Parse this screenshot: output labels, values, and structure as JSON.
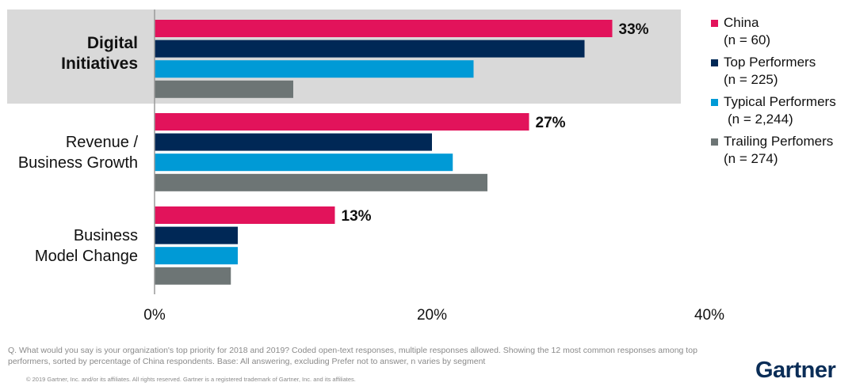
{
  "chart_data": {
    "type": "bar",
    "orientation": "horizontal",
    "categories": [
      "Digital Initiatives",
      "Revenue / Business Growth",
      "Business Model Change"
    ],
    "category_lines": [
      [
        "Digital",
        "Initiatives"
      ],
      [
        "Revenue /",
        "Business Growth"
      ],
      [
        "Business",
        "Model Change"
      ]
    ],
    "highlighted_category": "Digital Initiatives",
    "series": [
      {
        "name": "China",
        "n_label": "(n = 60)",
        "color": "#e2135b",
        "values": [
          33,
          27,
          13
        ]
      },
      {
        "name": "Top Performers",
        "n_label": "(n = 225)",
        "color": "#002856",
        "values": [
          31,
          20,
          6
        ]
      },
      {
        "name": "Typical Performers",
        "n_label": "(n = 2,244)",
        "color": "#009ad6",
        "values": [
          23,
          21.5,
          6
        ]
      },
      {
        "name": "Trailing Perfomers",
        "n_label": "(n = 274)",
        "color": "#6d7575",
        "values": [
          10,
          24,
          5.5
        ]
      }
    ],
    "data_labels": [
      "33%",
      "27%",
      "13%"
    ],
    "x_ticks": [
      0,
      20,
      40
    ],
    "x_tick_labels": [
      "0%",
      "20%",
      "40%"
    ],
    "xlim": [
      0,
      40
    ],
    "legend_position": "right",
    "grid": false
  },
  "footnote": "Q. What would you say is your organization's top priority for 2018 and 2019? Coded open-text responses, multiple responses allowed. Showing the 12 most common responses among top performers, sorted by percentage of China respondents. Base: All answering, excluding Prefer not to answer, n varies by segment",
  "copyright": "© 2019 Gartner, Inc. and/or its affiliates. All rights reserved. Gartner is a registered trademark of Gartner, Inc. and its affiliates.",
  "logo_text": "Gartner",
  "highlight_color": "#d9d9d9"
}
